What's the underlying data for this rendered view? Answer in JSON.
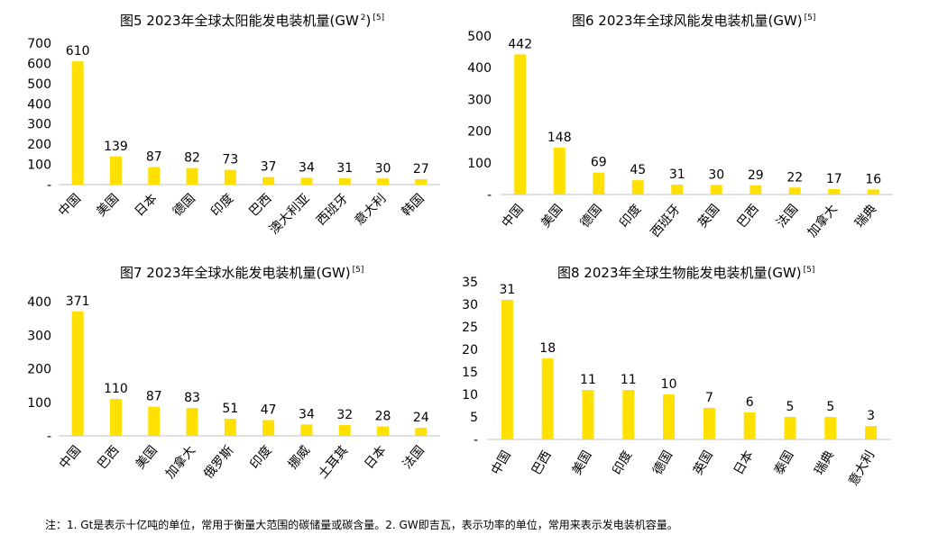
{
  "note": "注：1. Gt是表示十亿吨的单位，常用于衡量大范围的碳储量或碳含量。2. GW即吉瓦，表示功率的单位，常用来表示发电装机容量。",
  "bar_color": "#FFE000",
  "axis_color": "#BFBFBF",
  "chart_data": [
    {
      "type": "bar",
      "title": "图5  2023年全球太阳能发电装机量(GW",
      "title_sup_inner": "2",
      "title_close": ")",
      "ref": "[5]",
      "categories": [
        "中国",
        "美国",
        "日本",
        "德国",
        "印度",
        "巴西",
        "澳大利亚",
        "西班牙",
        "意大利",
        "韩国"
      ],
      "values": [
        610,
        139,
        87,
        82,
        73,
        37,
        34,
        31,
        30,
        27
      ],
      "ylim": [
        0,
        700
      ],
      "yticks": [
        0,
        100,
        200,
        300,
        400,
        500,
        600,
        700
      ],
      "ytick_labels": [
        "-",
        "100",
        "200",
        "300",
        "400",
        "500",
        "600",
        "700"
      ]
    },
    {
      "type": "bar",
      "title": "图6 2023年全球风能发电装机量(GW)",
      "ref": "[5]",
      "categories": [
        "中国",
        "美国",
        "德国",
        "印度",
        "西班牙",
        "英国",
        "巴西",
        "法国",
        "加拿大",
        "瑞典"
      ],
      "values": [
        442,
        148,
        69,
        45,
        31,
        30,
        29,
        22,
        17,
        16
      ],
      "ylim": [
        0,
        500
      ],
      "yticks": [
        0,
        100,
        200,
        300,
        400,
        500
      ],
      "ytick_labels": [
        "-",
        "100",
        "200",
        "300",
        "400",
        "500"
      ]
    },
    {
      "type": "bar",
      "title": "图7 2023年全球水能发电装机量(GW)",
      "ref": "[5]",
      "categories": [
        "中国",
        "巴西",
        "美国",
        "加拿大",
        "俄罗斯",
        "印度",
        "挪威",
        "土耳其",
        "日本",
        "法国"
      ],
      "values": [
        371,
        110,
        87,
        83,
        51,
        47,
        34,
        32,
        28,
        24
      ],
      "ylim": [
        0,
        400
      ],
      "yticks": [
        0,
        100,
        200,
        300,
        400
      ],
      "ytick_labels": [
        "-",
        "100",
        "200",
        "300",
        "400"
      ]
    },
    {
      "type": "bar",
      "title": "图8 2023年全球生物能发电装机量(GW)",
      "ref": "[5]",
      "categories": [
        "中国",
        "巴西",
        "美国",
        "印度",
        "德国",
        "英国",
        "日本",
        "泰国",
        "瑞典",
        "意大利"
      ],
      "values": [
        31,
        18,
        11,
        11,
        10,
        7,
        6,
        5,
        5,
        3
      ],
      "ylim": [
        0,
        35
      ],
      "yticks": [
        0,
        5,
        10,
        15,
        20,
        25,
        30,
        35
      ],
      "ytick_labels": [
        "-",
        "5",
        "10",
        "15",
        "20",
        "25",
        "30",
        "35"
      ]
    }
  ]
}
